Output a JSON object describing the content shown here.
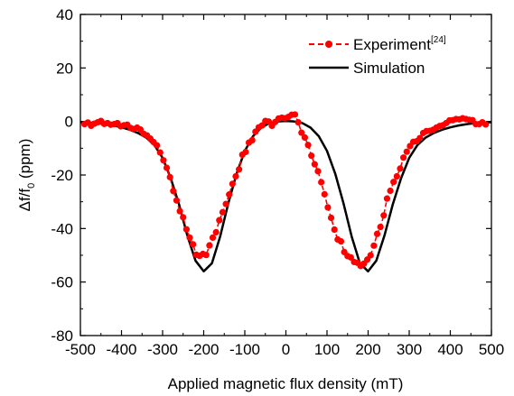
{
  "chart_data": {
    "type": "line",
    "title": "",
    "xlabel": "Applied magnetic flux density (mT)",
    "ylabel": {
      "main": "Δf/f",
      "sub": "0",
      "unit": " (ppm)"
    },
    "xlim": [
      -500,
      500
    ],
    "ylim": [
      -80,
      40
    ],
    "x_ticks": [
      -500,
      -400,
      -300,
      -200,
      -100,
      0,
      100,
      200,
      300,
      400,
      500
    ],
    "y_ticks": [
      40,
      20,
      0,
      -20,
      -40,
      -60,
      -80
    ],
    "grid": false,
    "legend_position": "top-right",
    "series": [
      {
        "name": "Experiment",
        "name_superscript": "[24]",
        "style": "dashed line with circle markers",
        "color": "#ff0000",
        "x": [
          -490,
          -482,
          -474,
          -466,
          -458,
          -450,
          -442,
          -434,
          -426,
          -418,
          -410,
          -402,
          -394,
          -386,
          -378,
          -370,
          -362,
          -354,
          -346,
          -338,
          -330,
          -322,
          -314,
          -306,
          -298,
          -290,
          -282,
          -274,
          -266,
          -258,
          -250,
          -242,
          -234,
          -226,
          -218,
          -210,
          -202,
          -194,
          -186,
          -178,
          -170,
          -162,
          -154,
          -146,
          -138,
          -130,
          -122,
          -114,
          -106,
          -98,
          -90,
          -82,
          -74,
          -66,
          -58,
          -50,
          -42,
          -34,
          -26,
          -18,
          -10,
          -2,
          6,
          14,
          22,
          30,
          38,
          46,
          54,
          62,
          70,
          78,
          86,
          94,
          102,
          110,
          118,
          126,
          134,
          142,
          150,
          158,
          166,
          174,
          182,
          190,
          198,
          206,
          214,
          222,
          230,
          238,
          246,
          254,
          262,
          270,
          278,
          286,
          294,
          302,
          310,
          318,
          326,
          334,
          342,
          350,
          358,
          366,
          374,
          382,
          390,
          398,
          406,
          414,
          422,
          430,
          438,
          446,
          454,
          462,
          470,
          478,
          486
        ],
        "y": [
          -1.0,
          -0.4,
          -1.6,
          -0.8,
          -0.3,
          0.2,
          -0.9,
          -0.6,
          -1.2,
          -1.0,
          -0.6,
          -1.8,
          -1.4,
          -1.2,
          -2.4,
          -2.8,
          -2.3,
          -3.0,
          -4.6,
          -5.2,
          -6.4,
          -7.7,
          -8.9,
          -11.6,
          -14.5,
          -17.3,
          -20.8,
          -26.0,
          -29.5,
          -33.5,
          -35.8,
          -40.3,
          -43.4,
          -45.9,
          -49.8,
          -50.2,
          -49.5,
          -49.9,
          -46.3,
          -43.4,
          -41.4,
          -36.9,
          -33.9,
          -30.8,
          -27.3,
          -23.3,
          -20.5,
          -17.9,
          -12.4,
          -11.4,
          -7.9,
          -7.0,
          -3.8,
          -2.2,
          -1.5,
          0.2,
          0.0,
          -1.6,
          -0.2,
          1.1,
          1.4,
          1.2,
          1.7,
          2.5,
          2.6,
          -0.3,
          -4.2,
          -6.0,
          -8.8,
          -12.8,
          -16.0,
          -18.6,
          -22.7,
          -27.2,
          -32.1,
          -36.0,
          -40.4,
          -44.1,
          -44.8,
          -48.8,
          -50.3,
          -50.8,
          -52.5,
          -52.8,
          -54.0,
          -53.1,
          -51.6,
          -50.0,
          -46.4,
          -42.0,
          -39.4,
          -35.1,
          -28.8,
          -25.9,
          -22.6,
          -20.5,
          -17.6,
          -13.5,
          -11.3,
          -9.2,
          -7.6,
          -7.4,
          -6.2,
          -4.3,
          -3.6,
          -3.5,
          -3.1,
          -2.3,
          -1.7,
          -1.4,
          -0.6,
          0.4,
          0.5,
          0.9,
          0.8,
          1.2,
          0.9,
          0.6,
          0.5,
          -1.0,
          -1.0,
          -0.3,
          -1.1
        ]
      },
      {
        "name": "Simulation",
        "style": "solid line",
        "color": "#000000",
        "x": [
          -500,
          -480,
          -460,
          -440,
          -420,
          -400,
          -380,
          -360,
          -340,
          -320,
          -300,
          -280,
          -260,
          -240,
          -220,
          -200,
          -180,
          -160,
          -140,
          -120,
          -100,
          -80,
          -60,
          -40,
          -20,
          0,
          20,
          40,
          60,
          80,
          100,
          120,
          140,
          160,
          180,
          200,
          220,
          240,
          260,
          280,
          300,
          320,
          340,
          360,
          380,
          400,
          420,
          440,
          460,
          480,
          500
        ],
        "y": [
          -0.3,
          -0.4,
          -0.6,
          -1.0,
          -1.5,
          -2.2,
          -3.1,
          -4.3,
          -6.0,
          -8.8,
          -13.6,
          -21.3,
          -31.0,
          -42.5,
          -52.0,
          -56.0,
          -53.0,
          -43.0,
          -30.5,
          -19.5,
          -11.0,
          -5.5,
          -2.3,
          -0.6,
          0.0,
          0.2,
          0.0,
          -0.6,
          -2.3,
          -5.5,
          -11.0,
          -19.5,
          -30.5,
          -43.0,
          -53.0,
          -56.0,
          -52.0,
          -42.5,
          -31.0,
          -21.3,
          -13.6,
          -8.8,
          -6.0,
          -4.3,
          -3.1,
          -2.2,
          -1.5,
          -1.0,
          -0.6,
          -0.4,
          -0.3
        ]
      }
    ]
  }
}
